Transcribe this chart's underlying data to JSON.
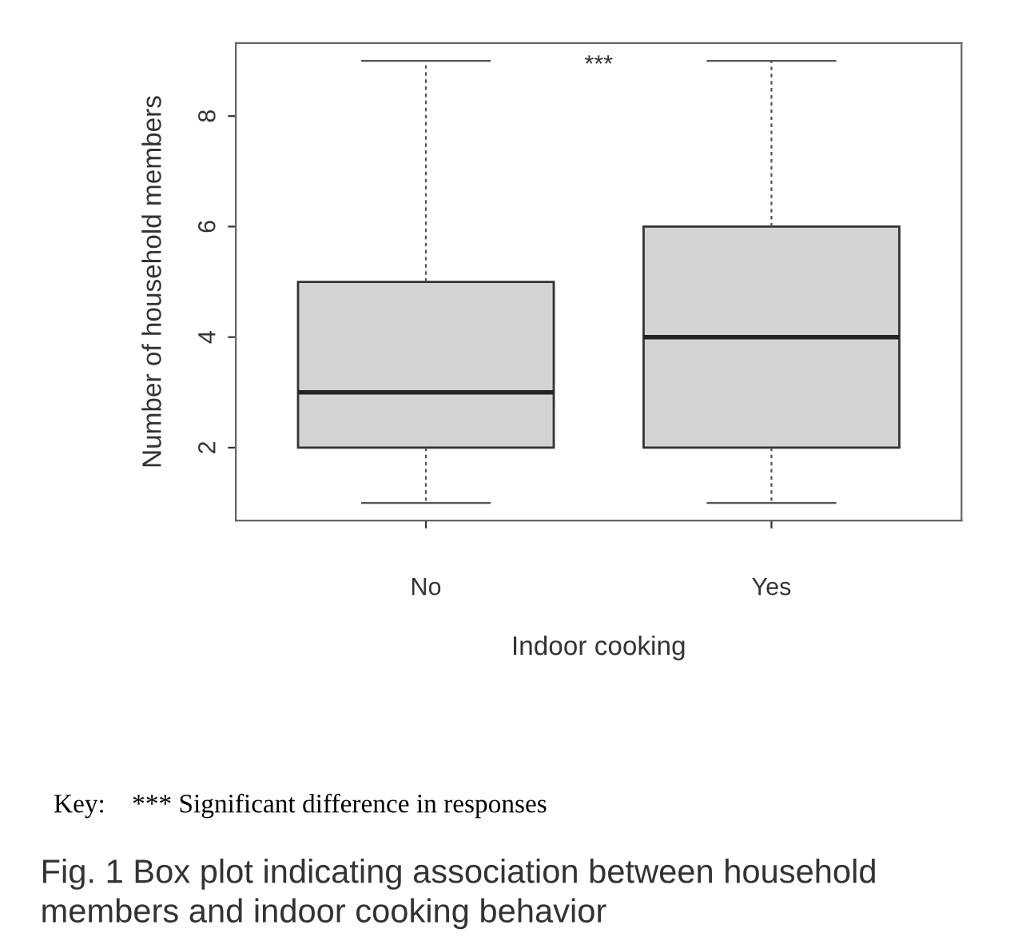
{
  "chart_data": {
    "type": "box",
    "xlabel": "Indoor cooking",
    "ylabel": "Number of household members",
    "categories": [
      "No",
      "Yes"
    ],
    "boxes": [
      {
        "low": 1,
        "q1": 2,
        "median": 3,
        "q3": 5,
        "high": 9
      },
      {
        "low": 1,
        "q1": 2,
        "median": 4,
        "q3": 6,
        "high": 9
      }
    ],
    "color": "#d3d3d3",
    "ylim": [
      0.68,
      9.32
    ],
    "yticks": [
      2,
      4,
      6,
      8
    ],
    "grid": false,
    "annotations": [
      "***",
      "Key:    *** Significant difference in responses",
      "Fig. 1 Box plot indicating association between household members and indoor cooking behavior"
    ]
  }
}
